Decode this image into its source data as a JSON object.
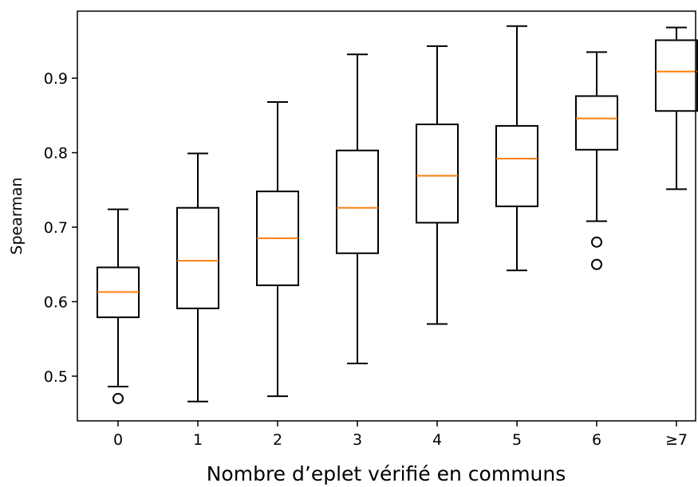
{
  "chart_data": {
    "type": "box",
    "xlabel": "Nombre d’eplet vérifié en communs",
    "ylabel": "Spearman",
    "categories": [
      "0",
      "1",
      "2",
      "3",
      "4",
      "5",
      "6",
      "≥7"
    ],
    "ylim": [
      0.44,
      0.99
    ],
    "yticks": [
      0.5,
      0.6,
      0.7,
      0.8,
      0.9
    ],
    "ytick_labels": [
      "0.5",
      "0.6",
      "0.7",
      "0.8",
      "0.9"
    ],
    "grid": false,
    "colors": {
      "box": "#000000",
      "median": "#ff7f0e",
      "background": "#ffffff"
    },
    "boxes": [
      {
        "whislo": 0.486,
        "q1": 0.579,
        "med": 0.613,
        "q3": 0.646,
        "whishi": 0.724,
        "fliers": [
          0.47
        ]
      },
      {
        "whislo": 0.466,
        "q1": 0.591,
        "med": 0.655,
        "q3": 0.726,
        "whishi": 0.799,
        "fliers": []
      },
      {
        "whislo": 0.473,
        "q1": 0.622,
        "med": 0.685,
        "q3": 0.748,
        "whishi": 0.868,
        "fliers": []
      },
      {
        "whislo": 0.517,
        "q1": 0.665,
        "med": 0.726,
        "q3": 0.803,
        "whishi": 0.932,
        "fliers": []
      },
      {
        "whislo": 0.57,
        "q1": 0.706,
        "med": 0.769,
        "q3": 0.838,
        "whishi": 0.943,
        "fliers": []
      },
      {
        "whislo": 0.642,
        "q1": 0.728,
        "med": 0.792,
        "q3": 0.836,
        "whishi": 0.97,
        "fliers": []
      },
      {
        "whislo": 0.708,
        "q1": 0.804,
        "med": 0.846,
        "q3": 0.876,
        "whishi": 0.935,
        "fliers": [
          0.68,
          0.65
        ]
      },
      {
        "whislo": 0.751,
        "q1": 0.856,
        "med": 0.909,
        "q3": 0.951,
        "whishi": 0.968,
        "fliers": []
      }
    ]
  }
}
